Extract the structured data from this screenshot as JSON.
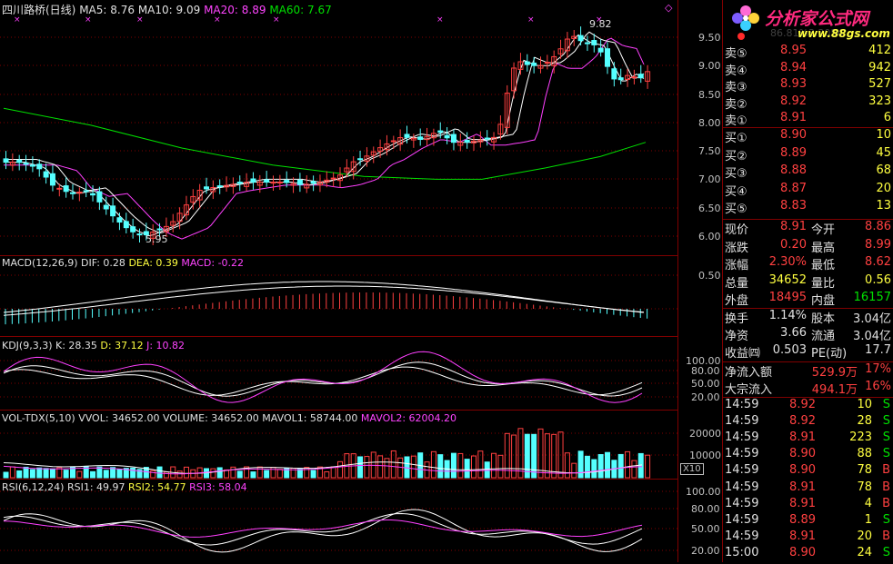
{
  "header": {
    "title": "四川路桥(日线)",
    "ma5": "MA5: 8.76",
    "ma10": "MA10: 9.09",
    "ma20": "MA20: 8.89",
    "ma60": "MA60: 7.67"
  },
  "price_axis": [
    "9.50",
    "9.00",
    "8.50",
    "8.00",
    "7.50",
    "7.00",
    "6.50",
    "6.00"
  ],
  "markers": {
    "high": "9.82",
    "low": "5.95"
  },
  "macd": {
    "label": "MACD(12,26,9)",
    "dif": "DIF: 0.28",
    "dea": "DEA: 0.39",
    "macd": "MACD: -0.22",
    "axis": [
      "0.50"
    ]
  },
  "kdj": {
    "label": "KDJ(9,3,3)",
    "k": "K: 28.35",
    "d": "D: 37.12",
    "j": "J: 10.82",
    "axis": [
      "100.00",
      "80.00",
      "50.00",
      "20.00"
    ]
  },
  "vol": {
    "label": "VOL-TDX(5,10)",
    "vvol": "VVOL: 34652.00",
    "volume": "VOLUME: 34652.00",
    "mavol1": "MAVOL1: 58744.00",
    "mavol2": "MAVOL2: 62004.20",
    "axis": [
      "20000",
      "10000"
    ],
    "unit": "X10"
  },
  "rsi": {
    "label": "RSI(6,12,24)",
    "rsi1": "RSI1: 49.97",
    "rsi2": "RSI2: 54.77",
    "rsi3": "RSI3: 58.04",
    "axis": [
      "100.00",
      "80.00",
      "50.00",
      "20.00"
    ]
  },
  "logo": {
    "title": "分析家公式网",
    "url": "www.88gs.com",
    "ghost": "86.81%3.2054"
  },
  "orderbook": {
    "sell": [
      {
        "label": "卖⑤",
        "price": "8.95",
        "vol": "412"
      },
      {
        "label": "卖④",
        "price": "8.94",
        "vol": "942"
      },
      {
        "label": "卖③",
        "price": "8.93",
        "vol": "527"
      },
      {
        "label": "卖②",
        "price": "8.92",
        "vol": "323"
      },
      {
        "label": "卖①",
        "price": "8.91",
        "vol": "6"
      }
    ],
    "buy": [
      {
        "label": "买①",
        "price": "8.90",
        "vol": "10"
      },
      {
        "label": "买②",
        "price": "8.89",
        "vol": "45"
      },
      {
        "label": "买③",
        "price": "8.88",
        "vol": "68"
      },
      {
        "label": "买④",
        "price": "8.87",
        "vol": "20"
      },
      {
        "label": "买⑤",
        "price": "8.83",
        "vol": "13"
      }
    ]
  },
  "quote": [
    {
      "l1": "现价",
      "v1": "8.91",
      "l2": "今开",
      "v2": "8.86"
    },
    {
      "l1": "涨跌",
      "v1": "0.20",
      "l2": "最高",
      "v2": "8.99"
    },
    {
      "l1": "涨幅",
      "v1": "2.30%",
      "l2": "最低",
      "v2": "8.62"
    },
    {
      "l1": "总量",
      "v1": "34652",
      "l2": "量比",
      "v2": "0.56"
    },
    {
      "l1": "外盘",
      "v1": "18495",
      "l2": "内盘",
      "v2": "16157"
    }
  ],
  "fund": [
    {
      "l1": "换手",
      "v1": "1.14%",
      "l2": "股本",
      "v2": "3.04亿"
    },
    {
      "l1": "净资",
      "v1": "3.66",
      "l2": "流通",
      "v2": "3.04亿"
    },
    {
      "l1": "收益㈣",
      "v1": "0.503",
      "l2": "PE(动)",
      "v2": "17.7"
    }
  ],
  "flow": [
    {
      "label": "净流入额",
      "value": "529.9万",
      "pct": "17%"
    },
    {
      "label": "大宗流入",
      "value": "494.1万",
      "pct": "16%"
    }
  ],
  "ticks": [
    {
      "time": "14:59",
      "price": "8.92",
      "vol": "10",
      "side": "S"
    },
    {
      "time": "14:59",
      "price": "8.92",
      "vol": "28",
      "side": "S"
    },
    {
      "time": "14:59",
      "price": "8.91",
      "vol": "223",
      "side": "S"
    },
    {
      "time": "14:59",
      "price": "8.90",
      "vol": "88",
      "side": "S"
    },
    {
      "time": "14:59",
      "price": "8.90",
      "vol": "78",
      "side": "B"
    },
    {
      "time": "14:59",
      "price": "8.91",
      "vol": "78",
      "side": "B"
    },
    {
      "time": "14:59",
      "price": "8.91",
      "vol": "4",
      "side": "B"
    },
    {
      "time": "14:59",
      "price": "8.89",
      "vol": "1",
      "side": "S"
    },
    {
      "time": "14:59",
      "price": "8.91",
      "vol": "20",
      "side": "B"
    },
    {
      "time": "15:00",
      "price": "8.90",
      "vol": "24",
      "side": "S"
    }
  ],
  "colors": {
    "up": "#ff4040",
    "down": "#55ffff",
    "ma5": "#ffffff",
    "ma10": "#ffff00",
    "ma20": "#ff40ff",
    "ma60": "#00e000",
    "grid": "#800000"
  }
}
